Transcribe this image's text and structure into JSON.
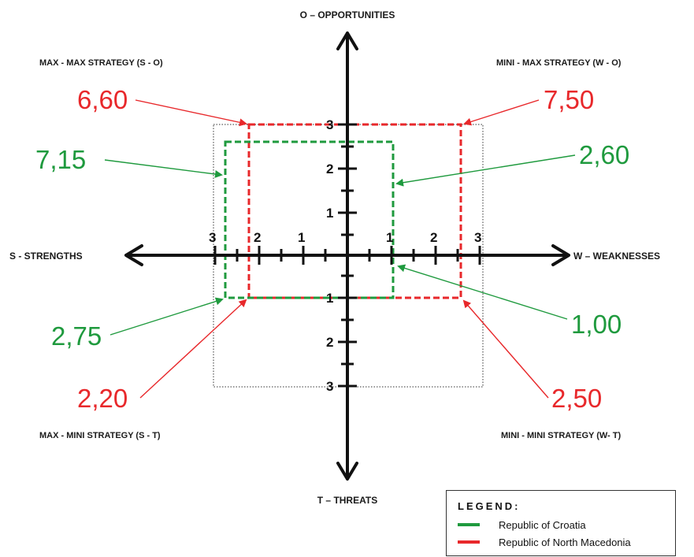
{
  "axes": {
    "top": "O – OPPORTUNITIES",
    "bottom": "T – THREATS",
    "left": "S - STRENGTHS",
    "right": "W – WEAKNESSES"
  },
  "quadrants": {
    "top_left": "MAX - MAX STRATEGY (S - O)",
    "top_right": "MINI - MAX STRATEGY (W - O)",
    "bottom_left": "MAX - MINI STRATEGY (S - T)",
    "bottom_right": "MINI - MINI STRATEGY (W- T)"
  },
  "ticks": {
    "x_left": [
      "3",
      "2",
      "1"
    ],
    "x_right": [
      "1",
      "2",
      "3"
    ],
    "y_up": [
      "1",
      "2",
      "3"
    ],
    "y_down": [
      "1",
      "2",
      "3"
    ]
  },
  "values": {
    "croatia": {
      "so": "7,15",
      "wo": "2,60",
      "st": "2,75",
      "wt": "1,00"
    },
    "north_macedonia": {
      "so": "6,60",
      "wo": "7,50",
      "st": "2,20",
      "wt": "2,50"
    }
  },
  "colors": {
    "croatia": "#1f9a3e",
    "north_macedonia": "#e8282b"
  },
  "legend": {
    "title": "LEGEND:",
    "items": [
      "Republic of Croatia",
      "Republic of North Macedonia"
    ]
  }
}
